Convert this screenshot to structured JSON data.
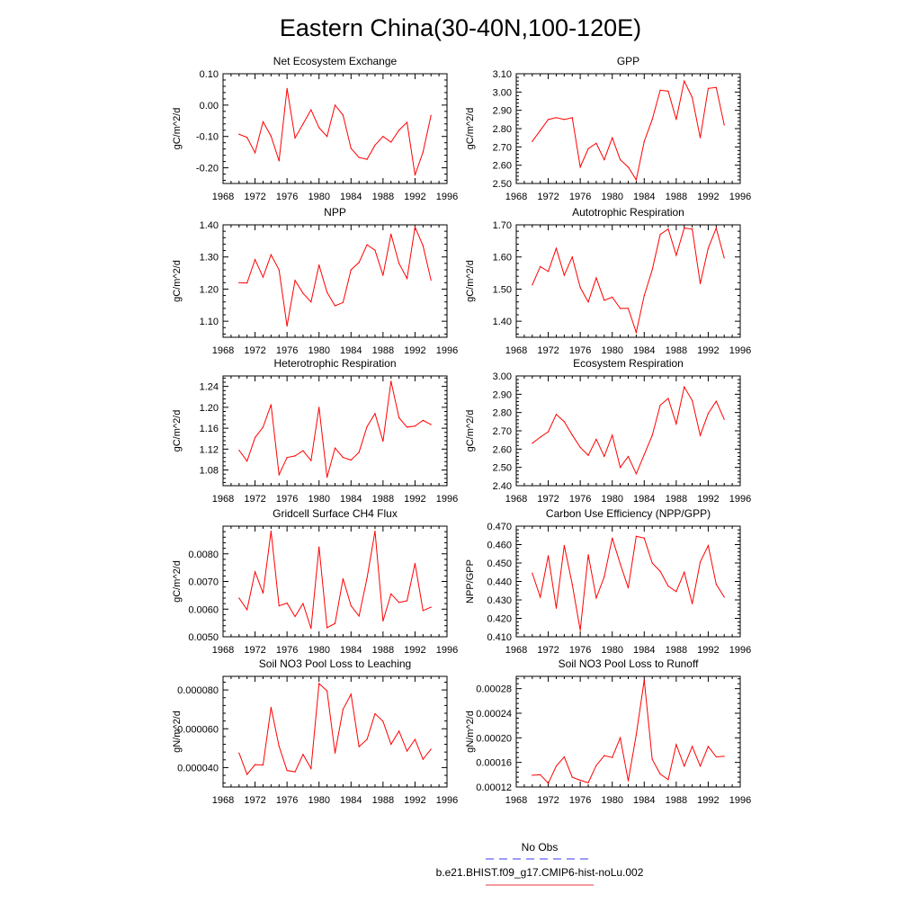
{
  "figure": {
    "title": "Eastern China(30-40N,100-120E)"
  },
  "legend": {
    "entries": [
      {
        "label": "No Obs",
        "color": "#3a3af0",
        "dash": true
      },
      {
        "label": "b.e21.BHIST.f09_g17.CMIP6-hist-noLu.002",
        "color": "#e8393c",
        "dash": false
      }
    ]
  },
  "colors": {
    "series": "#ff0000",
    "axis": "#000000"
  },
  "chart_data": [
    {
      "type": "line",
      "title": "Net Ecosystem Exchange",
      "ylabel": "gC/m^2/d",
      "xlim": [
        1968,
        1996
      ],
      "xticks": [
        "1968",
        "1972",
        "1976",
        "1980",
        "1984",
        "1988",
        "1992",
        "1996"
      ],
      "ylim": [
        -0.25,
        0.1
      ],
      "yticks": [
        "-0.20",
        "-0.10",
        "0.00",
        "0.10"
      ],
      "x": [
        1970,
        1971,
        1972,
        1973,
        1974,
        1975,
        1976,
        1977,
        1978,
        1979,
        1980,
        1981,
        1982,
        1983,
        1984,
        1985,
        1986,
        1987,
        1988,
        1989,
        1990,
        1991,
        1992,
        1993,
        1994
      ],
      "series": [
        {
          "values": [
            -0.093,
            -0.103,
            -0.152,
            -0.053,
            -0.099,
            -0.178,
            0.053,
            -0.105,
            -0.06,
            -0.015,
            -0.072,
            -0.1,
            0.0,
            -0.032,
            -0.138,
            -0.167,
            -0.173,
            -0.128,
            -0.1,
            -0.118,
            -0.08,
            -0.055,
            -0.223,
            -0.15,
            -0.033
          ]
        }
      ]
    },
    {
      "type": "line",
      "title": "GPP",
      "ylabel": "gC/m^2/d",
      "xlim": [
        1968,
        1996
      ],
      "xticks": [
        "1968",
        "1972",
        "1976",
        "1980",
        "1984",
        "1988",
        "1992",
        "1996"
      ],
      "ylim": [
        2.5,
        3.1
      ],
      "yticks": [
        "2.50",
        "2.60",
        "2.70",
        "2.80",
        "2.90",
        "3.00",
        "3.10"
      ],
      "x": [
        1970,
        1971,
        1972,
        1973,
        1974,
        1975,
        1976,
        1977,
        1978,
        1979,
        1980,
        1981,
        1982,
        1983,
        1984,
        1985,
        1986,
        1987,
        1988,
        1989,
        1990,
        1991,
        1992,
        1993,
        1994
      ],
      "series": [
        {
          "values": [
            2.73,
            2.79,
            2.85,
            2.86,
            2.85,
            2.86,
            2.59,
            2.69,
            2.72,
            2.63,
            2.75,
            2.63,
            2.59,
            2.52,
            2.73,
            2.85,
            3.01,
            3.005,
            2.85,
            3.06,
            2.97,
            2.75,
            3.02,
            3.025,
            2.82
          ]
        }
      ]
    },
    {
      "type": "line",
      "title": "NPP",
      "ylabel": "gC/m^2/d",
      "xlim": [
        1968,
        1996
      ],
      "xticks": [
        "1968",
        "1972",
        "1976",
        "1980",
        "1984",
        "1988",
        "1992",
        "1996"
      ],
      "ylim": [
        1.05,
        1.4
      ],
      "yticks": [
        "1.10",
        "1.20",
        "1.30",
        "1.40"
      ],
      "x": [
        1970,
        1971,
        1972,
        1973,
        1974,
        1975,
        1976,
        1977,
        1978,
        1979,
        1980,
        1981,
        1982,
        1983,
        1984,
        1985,
        1986,
        1987,
        1988,
        1989,
        1990,
        1991,
        1992,
        1993,
        1994
      ],
      "series": [
        {
          "values": [
            1.22,
            1.219,
            1.292,
            1.237,
            1.307,
            1.26,
            1.085,
            1.227,
            1.187,
            1.16,
            1.275,
            1.19,
            1.148,
            1.158,
            1.26,
            1.283,
            1.338,
            1.321,
            1.243,
            1.371,
            1.28,
            1.233,
            1.393,
            1.335,
            1.228
          ]
        }
      ]
    },
    {
      "type": "line",
      "title": "Autotrophic Respiration",
      "ylabel": "gC/m^2/d",
      "xlim": [
        1968,
        1996
      ],
      "xticks": [
        "1968",
        "1972",
        "1976",
        "1980",
        "1984",
        "1988",
        "1992",
        "1996"
      ],
      "ylim": [
        1.35,
        1.7
      ],
      "yticks": [
        "1.40",
        "1.50",
        "1.60",
        "1.70"
      ],
      "x": [
        1970,
        1971,
        1972,
        1973,
        1974,
        1975,
        1976,
        1977,
        1978,
        1979,
        1980,
        1981,
        1982,
        1983,
        1984,
        1985,
        1986,
        1987,
        1988,
        1989,
        1990,
        1991,
        1992,
        1993,
        1994
      ],
      "series": [
        {
          "values": [
            1.513,
            1.57,
            1.555,
            1.627,
            1.543,
            1.6,
            1.505,
            1.46,
            1.535,
            1.465,
            1.475,
            1.44,
            1.44,
            1.365,
            1.48,
            1.56,
            1.67,
            1.687,
            1.605,
            1.69,
            1.687,
            1.517,
            1.627,
            1.69,
            1.597
          ]
        }
      ]
    },
    {
      "type": "line",
      "title": "Heterotrophic Respiration",
      "ylabel": "gC/m^2/d",
      "xlim": [
        1968,
        1996
      ],
      "xticks": [
        "1968",
        "1972",
        "1976",
        "1980",
        "1984",
        "1988",
        "1992",
        "1996"
      ],
      "ylim": [
        1.05,
        1.26
      ],
      "yticks": [
        "1.08",
        "1.12",
        "1.16",
        "1.20",
        "1.24"
      ],
      "x": [
        1970,
        1971,
        1972,
        1973,
        1974,
        1975,
        1976,
        1977,
        1978,
        1979,
        1980,
        1981,
        1982,
        1983,
        1984,
        1985,
        1986,
        1987,
        1988,
        1989,
        1990,
        1991,
        1992,
        1993,
        1994
      ],
      "series": [
        {
          "values": [
            1.118,
            1.097,
            1.142,
            1.162,
            1.205,
            1.071,
            1.104,
            1.107,
            1.117,
            1.098,
            1.2,
            1.066,
            1.122,
            1.104,
            1.099,
            1.114,
            1.163,
            1.188,
            1.135,
            1.25,
            1.18,
            1.162,
            1.164,
            1.175,
            1.167
          ]
        }
      ]
    },
    {
      "type": "line",
      "title": "Ecosystem Respiration",
      "ylabel": "gC/m^2/d",
      "xlim": [
        1968,
        1996
      ],
      "xticks": [
        "1968",
        "1972",
        "1976",
        "1980",
        "1984",
        "1988",
        "1992",
        "1996"
      ],
      "ylim": [
        2.4,
        3.0
      ],
      "yticks": [
        "2.40",
        "2.50",
        "2.60",
        "2.70",
        "2.80",
        "2.90",
        "3.00"
      ],
      "x": [
        1970,
        1971,
        1972,
        1973,
        1974,
        1975,
        1976,
        1977,
        1978,
        1979,
        1980,
        1981,
        1982,
        1983,
        1984,
        1985,
        1986,
        1987,
        1988,
        1989,
        1990,
        1991,
        1992,
        1993,
        1994
      ],
      "series": [
        {
          "values": [
            2.632,
            2.665,
            2.695,
            2.79,
            2.75,
            2.677,
            2.61,
            2.566,
            2.654,
            2.56,
            2.676,
            2.5,
            2.56,
            2.465,
            2.57,
            2.675,
            2.84,
            2.877,
            2.738,
            2.94,
            2.866,
            2.675,
            2.795,
            2.862,
            2.763
          ]
        }
      ]
    },
    {
      "type": "line",
      "title": "Gridcell Surface CH4 Flux",
      "ylabel": "gC/m^2/d",
      "xlim": [
        1968,
        1996
      ],
      "xticks": [
        "1968",
        "1972",
        "1976",
        "1980",
        "1984",
        "1988",
        "1992",
        "1996"
      ],
      "ylim": [
        0.005,
        0.009
      ],
      "yticks": [
        "0.0050",
        "0.0060",
        "0.0070",
        "0.0080"
      ],
      "x": [
        1970,
        1971,
        1972,
        1973,
        1974,
        1975,
        1976,
        1977,
        1978,
        1979,
        1980,
        1981,
        1982,
        1983,
        1984,
        1985,
        1986,
        1987,
        1988,
        1989,
        1990,
        1991,
        1992,
        1993,
        1994
      ],
      "series": [
        {
          "values": [
            0.0064,
            0.00598,
            0.00735,
            0.00658,
            0.00882,
            0.00612,
            0.00622,
            0.00573,
            0.0062,
            0.0053,
            0.00825,
            0.00533,
            0.00548,
            0.0071,
            0.00612,
            0.00575,
            0.00712,
            0.00882,
            0.00557,
            0.00655,
            0.00624,
            0.0063,
            0.00765,
            0.00595,
            0.00607
          ]
        }
      ]
    },
    {
      "type": "line",
      "title": "Carbon Use Efficiency (NPP/GPP)",
      "ylabel": "NPP/GPP",
      "xlim": [
        1968,
        1996
      ],
      "xticks": [
        "1968",
        "1972",
        "1976",
        "1980",
        "1984",
        "1988",
        "1992",
        "1996"
      ],
      "ylim": [
        0.41,
        0.47
      ],
      "yticks": [
        "0.410",
        "0.420",
        "0.430",
        "0.440",
        "0.450",
        "0.460",
        "0.470"
      ],
      "x": [
        1970,
        1971,
        1972,
        1973,
        1974,
        1975,
        1976,
        1977,
        1978,
        1979,
        1980,
        1981,
        1982,
        1983,
        1984,
        1985,
        1986,
        1987,
        1988,
        1989,
        1990,
        1991,
        1992,
        1993,
        1994
      ],
      "series": [
        {
          "values": [
            0.4445,
            0.4315,
            0.454,
            0.4255,
            0.4595,
            0.4385,
            0.4135,
            0.4545,
            0.431,
            0.4425,
            0.4635,
            0.4495,
            0.4365,
            0.4645,
            0.4635,
            0.45,
            0.4455,
            0.4375,
            0.4345,
            0.445,
            0.428,
            0.4505,
            0.4595,
            0.4385,
            0.4315
          ]
        }
      ]
    },
    {
      "type": "line",
      "title": "Soil NO3 Pool Loss to Leaching",
      "ylabel": "gN/m^2/d",
      "xlim": [
        1968,
        1996
      ],
      "xticks": [
        "1968",
        "1972",
        "1976",
        "1980",
        "1984",
        "1988",
        "1992",
        "1996"
      ],
      "ylim": [
        3e-05,
        8.7e-05
      ],
      "yticks": [
        "0.000040",
        "0.000060",
        "0.000080"
      ],
      "x": [
        1970,
        1971,
        1972,
        1973,
        1974,
        1975,
        1976,
        1977,
        1978,
        1979,
        1980,
        1981,
        1982,
        1983,
        1984,
        1985,
        1986,
        1987,
        1988,
        1989,
        1990,
        1991,
        1992,
        1993,
        1994
      ],
      "series": [
        {
          "values": [
            4.75e-05,
            3.65e-05,
            4.15e-05,
            4.13e-05,
            7.1e-05,
            5.1e-05,
            3.85e-05,
            3.78e-05,
            4.68e-05,
            3.95e-05,
            8.33e-05,
            7.95e-05,
            4.75e-05,
            7e-05,
            7.78e-05,
            5.08e-05,
            5.45e-05,
            6.78e-05,
            6.38e-05,
            5.2e-05,
            5.88e-05,
            4.85e-05,
            5.45e-05,
            4.43e-05,
            4.95e-05
          ]
        }
      ]
    },
    {
      "type": "line",
      "title": "Soil NO3 Pool Loss to Runoff",
      "ylabel": "gN/m^2/d",
      "xlim": [
        1968,
        1996
      ],
      "xticks": [
        "1968",
        "1972",
        "1976",
        "1980",
        "1984",
        "1988",
        "1992",
        "1996"
      ],
      "ylim": [
        0.00012,
        0.0003
      ],
      "yticks": [
        "0.00012",
        "0.00016",
        "0.00020",
        "0.00024",
        "0.00028"
      ],
      "x": [
        1970,
        1971,
        1972,
        1973,
        1974,
        1975,
        1976,
        1977,
        1978,
        1979,
        1980,
        1981,
        1982,
        1983,
        1984,
        1985,
        1986,
        1987,
        1988,
        1989,
        1990,
        1991,
        1992,
        1993,
        1994
      ],
      "series": [
        {
          "values": [
            0.000139,
            0.00014,
            0.000126,
            0.000154,
            0.000169,
            0.000136,
            0.000131,
            0.000127,
            0.000155,
            0.000171,
            0.000168,
            0.0002,
            0.00013,
            0.000205,
            0.000294,
            0.000165,
            0.000141,
            0.000132,
            0.000189,
            0.000154,
            0.000186,
            0.000154,
            0.000186,
            0.000169,
            0.00017
          ]
        }
      ]
    }
  ]
}
